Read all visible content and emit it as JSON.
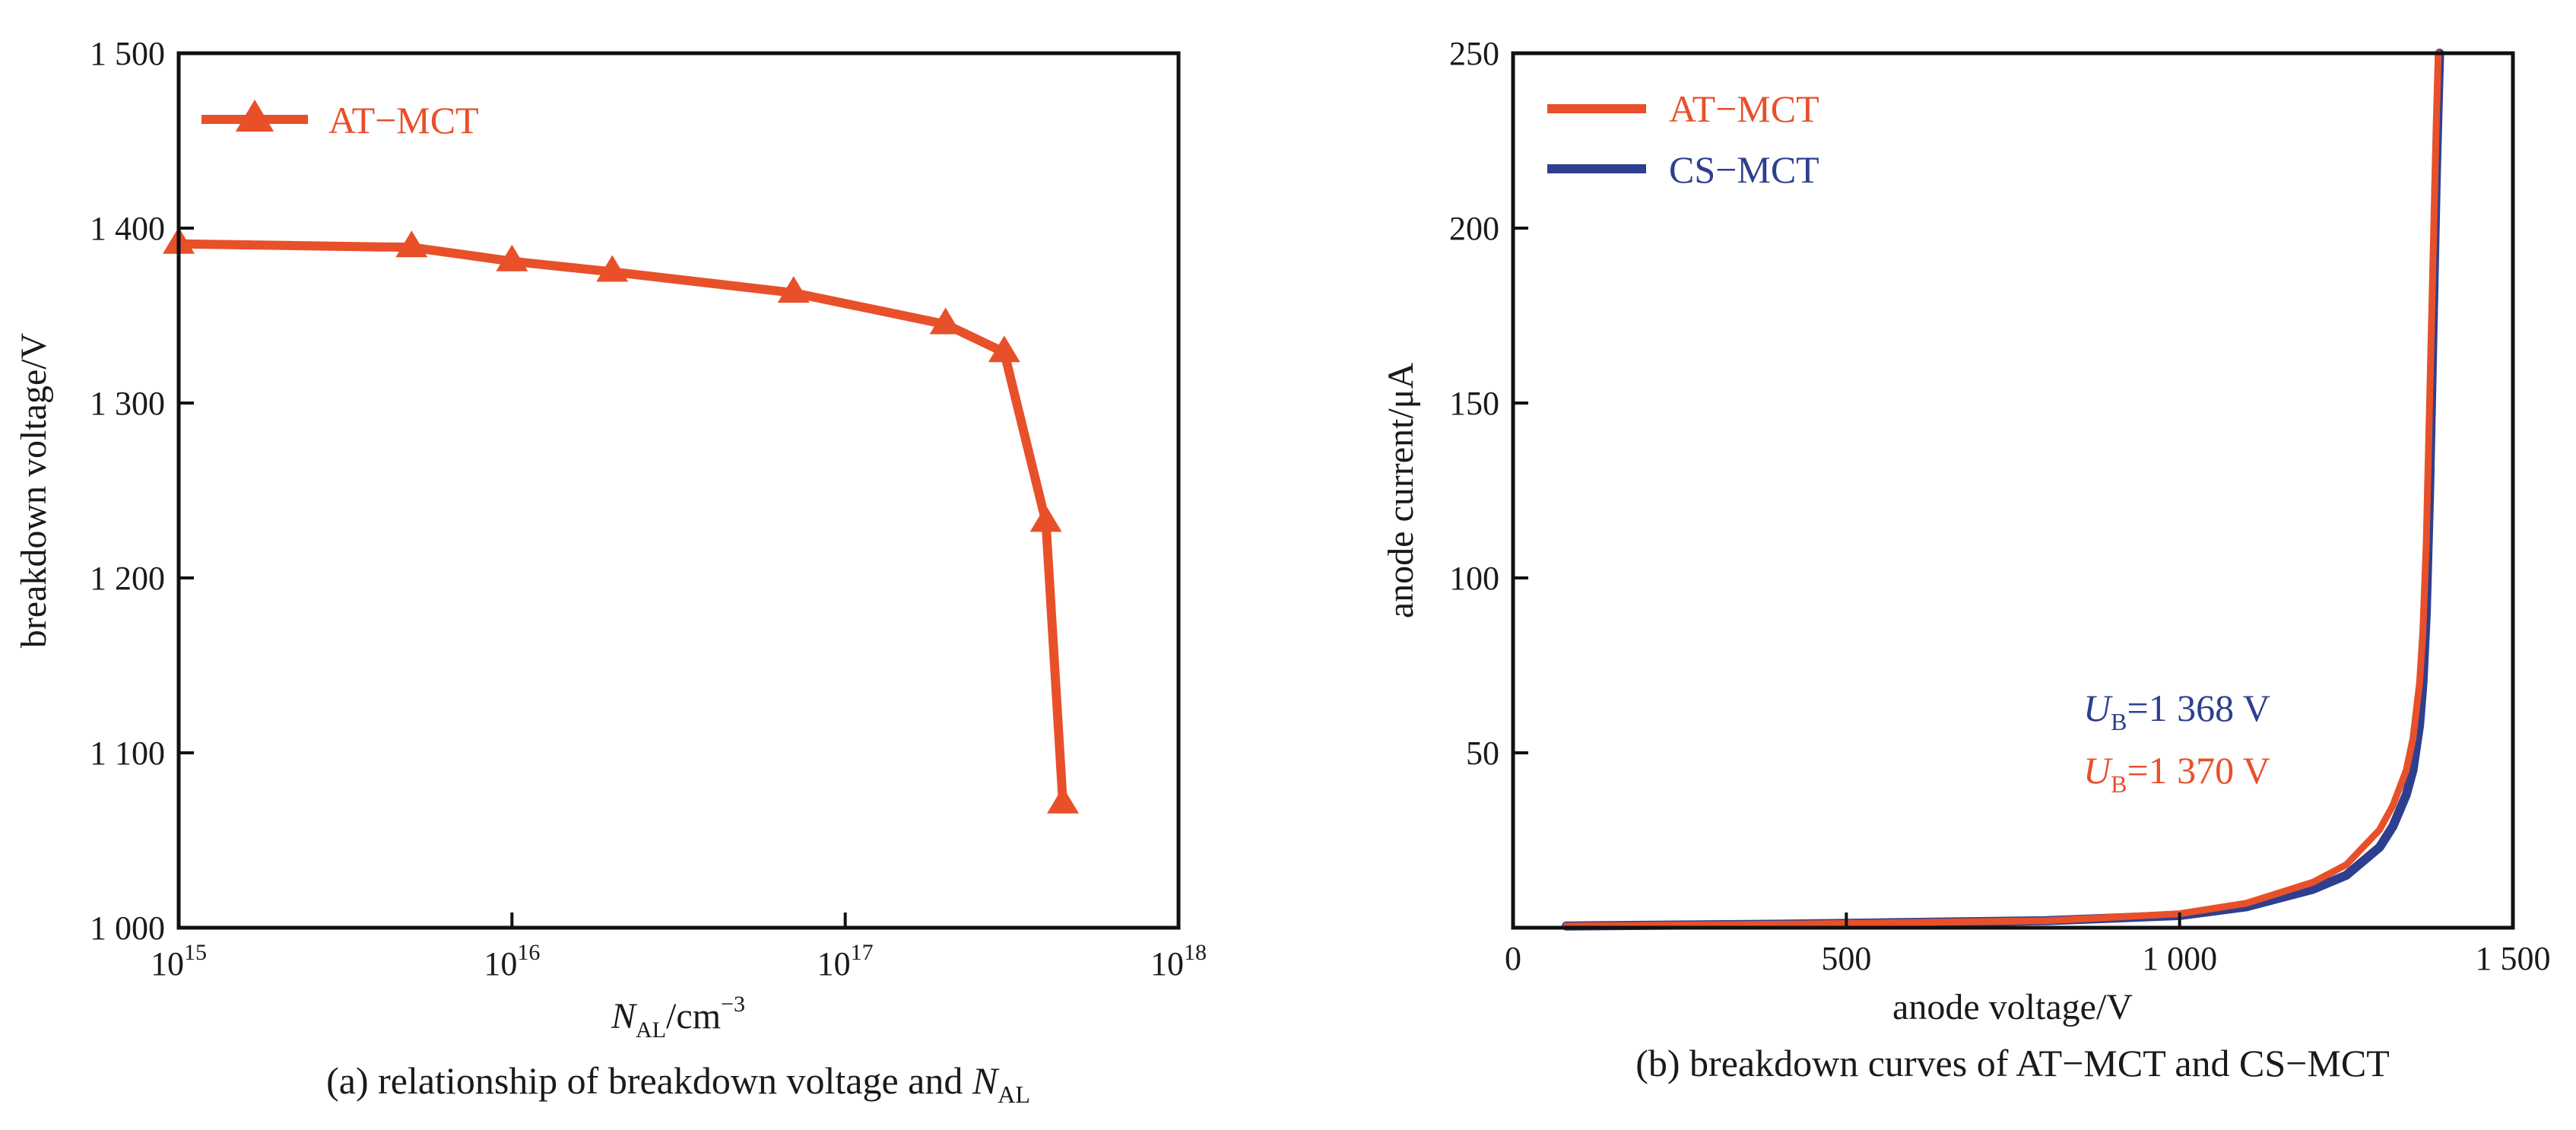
{
  "chart_data": [
    {
      "type": "line",
      "caption_prefix": "(a) relationship of breakdown voltage and ",
      "caption_var": "N",
      "caption_sub": "AL",
      "xlabel_var": "N",
      "xlabel_sub": "AL",
      "xlabel_unit": "/cm",
      "xlabel_sup": "−3",
      "ylabel": "breakdown voltage/V",
      "x_scale": "log",
      "xlim": [
        1000000000000000.0,
        1e+18
      ],
      "ylim": [
        1000,
        1500
      ],
      "x_ticks": [
        {
          "base": "10",
          "exp": "15",
          "value": 1000000000000000.0
        },
        {
          "base": "10",
          "exp": "16",
          "value": 1e+16
        },
        {
          "base": "10",
          "exp": "17",
          "value": 1e+17
        },
        {
          "base": "10",
          "exp": "18",
          "value": 1e+18
        }
      ],
      "y_ticks": [
        {
          "label": "1 000",
          "value": 1000
        },
        {
          "label": "1 100",
          "value": 1100
        },
        {
          "label": "1 200",
          "value": 1200
        },
        {
          "label": "1 300",
          "value": 1300
        },
        {
          "label": "1 400",
          "value": 1400
        },
        {
          "label": "1 500",
          "value": 1500
        }
      ],
      "legend_position": "top-left",
      "series": [
        {
          "name": "AT−MCT",
          "color": "#e8502a",
          "marker": "triangle",
          "x": [
            1000000000000000.0,
            5000000000000000.0,
            1e+16,
            2e+16,
            7e+16,
            2e+17,
            3e+17,
            4e+17,
            4.5e+17
          ],
          "y": [
            1391,
            1389,
            1381,
            1375,
            1363,
            1345,
            1329,
            1232,
            1071
          ]
        }
      ]
    },
    {
      "type": "line",
      "caption": "(b) breakdown curves of AT−MCT and CS−MCT",
      "xlabel": "anode voltage/V",
      "ylabel": "anode current/μA",
      "x_scale": "linear",
      "xlim": [
        0,
        1500
      ],
      "ylim": [
        0,
        250
      ],
      "x_ticks": [
        {
          "label": "0",
          "value": 0
        },
        {
          "label": "500",
          "value": 500
        },
        {
          "label": "1 000",
          "value": 1000
        },
        {
          "label": "1 500",
          "value": 1500
        }
      ],
      "y_ticks": [
        {
          "label": "50",
          "value": 50
        },
        {
          "label": "100",
          "value": 100
        },
        {
          "label": "150",
          "value": 150
        },
        {
          "label": "200",
          "value": 200
        },
        {
          "label": "250",
          "value": 250
        }
      ],
      "legend_position": "top-left",
      "series": [
        {
          "name": "AT−MCT",
          "color": "#e8502a",
          "x": [
            80,
            400,
            800,
            1000,
            1100,
            1200,
            1250,
            1300,
            1320,
            1340,
            1350,
            1360,
            1365,
            1370,
            1375,
            1380,
            1385,
            1388
          ],
          "y": [
            0.5,
            1,
            2,
            4,
            7,
            13,
            18,
            28,
            35,
            45,
            54,
            70,
            85,
            110,
            150,
            190,
            230,
            250
          ]
        },
        {
          "name": "CS−MCT",
          "color": "#2e3f8f",
          "x": [
            80,
            400,
            800,
            1000,
            1100,
            1200,
            1250,
            1300,
            1320,
            1340,
            1350,
            1360,
            1365,
            1370,
            1375,
            1380,
            1385,
            1390
          ],
          "y": [
            0.5,
            1,
            2,
            3.5,
            6,
            11,
            15,
            23,
            29,
            38,
            45,
            58,
            70,
            90,
            125,
            170,
            215,
            250
          ]
        }
      ],
      "annotations": [
        {
          "var": "U",
          "sub": "B",
          "text": "=1 368 V",
          "color": "#2e3f8f"
        },
        {
          "var": "U",
          "sub": "B",
          "text": "=1 370 V",
          "color": "#e8502a"
        }
      ]
    }
  ]
}
